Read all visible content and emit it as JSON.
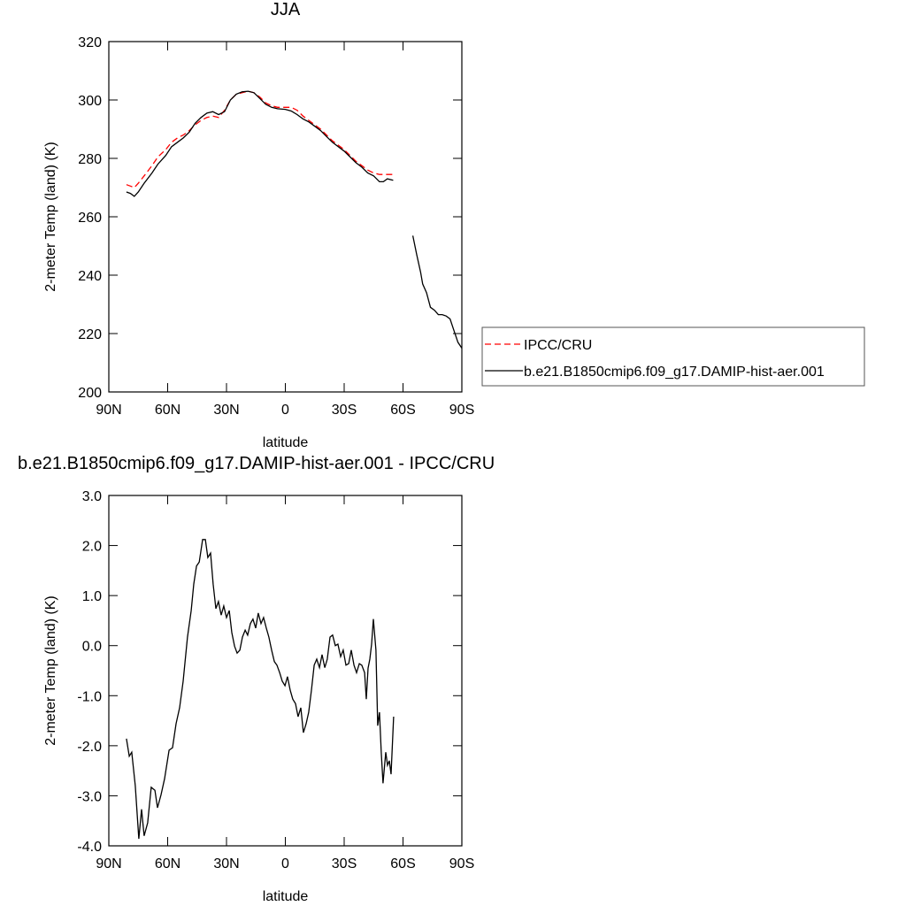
{
  "chart_data": [
    {
      "type": "line",
      "title": "JJA",
      "xlabel": "latitude",
      "ylabel": "2-meter Temp (land) (K)",
      "xlim": [
        90,
        -90
      ],
      "xticks": [
        {
          "value": 90,
          "label": "90N"
        },
        {
          "value": 60,
          "label": "60N"
        },
        {
          "value": 30,
          "label": "30N"
        },
        0,
        {
          "value": -30,
          "label": "30S"
        },
        {
          "value": -60,
          "label": "60S"
        },
        {
          "value": -90,
          "label": "90S"
        }
      ],
      "ylim": [
        200,
        320
      ],
      "yticks": [
        200,
        220,
        240,
        260,
        280,
        300,
        320
      ],
      "legend": "right",
      "x": [
        81,
        79,
        77,
        75,
        72,
        68,
        65,
        61,
        58,
        55,
        52,
        49,
        46,
        43,
        40,
        37,
        34,
        31,
        28,
        25,
        22,
        19,
        16,
        13,
        10,
        7,
        4,
        0,
        -3,
        -6,
        -9,
        -12,
        -15,
        -18,
        -21,
        -24,
        -27,
        -30,
        -33,
        -36,
        -39,
        -42,
        -45,
        -48,
        -50,
        -52,
        -55,
        -60,
        -65,
        -67,
        -69,
        -70,
        -72,
        -74,
        -76,
        -78,
        -80,
        -82,
        -84,
        -86,
        -88,
        -90
      ],
      "series": [
        {
          "name": "IPCC/CRU",
          "color": "#ff0000",
          "style": "dashed",
          "values": [
            271,
            270.5,
            270,
            271.5,
            274,
            277.5,
            280.5,
            283,
            285.5,
            287,
            288,
            289.5,
            291.5,
            293,
            294,
            294.5,
            294,
            296.5,
            300,
            302,
            302.5,
            303,
            302.5,
            301,
            299,
            298,
            297.5,
            297.5,
            297.5,
            296.5,
            294.5,
            293,
            291.5,
            290,
            288,
            286,
            284.5,
            283,
            281,
            279,
            277.5,
            276,
            275,
            274.5,
            274.5,
            274.5,
            274.5,
            null,
            null,
            null,
            null,
            null,
            null,
            null,
            null,
            null,
            null,
            null,
            null,
            null,
            null,
            null
          ]
        },
        {
          "name": "b.e21.B1850cmip6.f09_g17.DAMIP-hist-aer.001",
          "color": "#000000",
          "style": "solid",
          "values": [
            268.5,
            268,
            267,
            268.5,
            271.5,
            275,
            278,
            281,
            284,
            285.5,
            287,
            289,
            292,
            294,
            295.5,
            296,
            295,
            296,
            300,
            302,
            302.8,
            303,
            302.5,
            300.5,
            298.5,
            297.5,
            297,
            296.8,
            296.2,
            295,
            293.5,
            292.5,
            291,
            289.5,
            287.5,
            285.5,
            284,
            282.5,
            280.5,
            278.5,
            277,
            275,
            274,
            272,
            272,
            273,
            272.5,
            null,
            253.5,
            247,
            241,
            237,
            234,
            229,
            228,
            226.5,
            226.5,
            226,
            225,
            221,
            217,
            215
          ]
        }
      ]
    },
    {
      "type": "line",
      "title": "b.e21.B1850cmip6.f09_g17.DAMIP-hist-aer.001 - IPCC/CRU",
      "xlabel": "latitude",
      "ylabel": "2-meter Temp (land) (K)",
      "xlim": [
        90,
        -90
      ],
      "xticks": [
        {
          "value": 90,
          "label": "90N"
        },
        {
          "value": 60,
          "label": "60N"
        },
        {
          "value": 30,
          "label": "30N"
        },
        0,
        {
          "value": -30,
          "label": "30S"
        },
        {
          "value": -60,
          "label": "60S"
        },
        {
          "value": -90,
          "label": "90S"
        }
      ],
      "ylim": [
        -4,
        3
      ],
      "yticks": [
        {
          "value": -4,
          "label": "-4.0"
        },
        {
          "value": -3,
          "label": "-3.0"
        },
        {
          "value": -2,
          "label": "-2.0"
        },
        {
          "value": -1,
          "label": "-1.0"
        },
        {
          "value": 0,
          "label": "0.0"
        },
        {
          "value": 1,
          "label": "1.0"
        },
        {
          "value": 2,
          "label": "2.0"
        },
        {
          "value": 3,
          "label": "3.0"
        }
      ],
      "color": "#000000",
      "x": [
        81.0,
        79.6,
        78.3,
        76.5,
        74.7,
        73.3,
        72.0,
        70.2,
        68.4,
        66.5,
        65.2,
        63.4,
        61.6,
        59.3,
        57.5,
        55.7,
        53.9,
        52.1,
        49.9,
        48.0,
        46.7,
        45.3,
        43.9,
        42.2,
        40.8,
        39.5,
        38.1,
        36.8,
        35.4,
        34.1,
        32.7,
        31.4,
        30.0,
        28.6,
        27.3,
        25.9,
        24.6,
        23.2,
        21.9,
        20.5,
        19.2,
        17.8,
        16.5,
        15.1,
        13.8,
        12.4,
        11.1,
        9.7,
        8.4,
        7.0,
        5.6,
        4.3,
        2.9,
        1.6,
        0.2,
        -1.1,
        -2.5,
        -3.8,
        -5.2,
        -6.5,
        -7.9,
        -9.2,
        -10.6,
        -11.9,
        -13.3,
        -14.7,
        -16.0,
        -17.4,
        -18.7,
        -20.1,
        -21.4,
        -22.8,
        -24.1,
        -25.5,
        -26.8,
        -28.2,
        -29.5,
        -30.9,
        -32.3,
        -33.6,
        -35.0,
        -36.3,
        -37.7,
        -39.0,
        -40.4,
        -41.3,
        -42.2,
        -43.1,
        -44.0,
        -44.9,
        -46.2,
        -47.1,
        -48.0,
        -48.9,
        -49.8,
        -51.2,
        -52.1,
        -53.0,
        -53.9,
        -55.2
      ],
      "values": [
        -1.86,
        -2.21,
        -2.13,
        -2.8,
        -3.86,
        -3.27,
        -3.8,
        -3.54,
        -2.83,
        -2.89,
        -3.24,
        -2.98,
        -2.66,
        -2.09,
        -2.04,
        -1.56,
        -1.24,
        -0.71,
        0.17,
        0.7,
        1.23,
        1.59,
        1.67,
        2.12,
        2.12,
        1.76,
        1.85,
        1.23,
        0.74,
        0.88,
        0.61,
        0.79,
        0.56,
        0.7,
        0.26,
        -0.01,
        -0.15,
        -0.09,
        0.17,
        0.31,
        0.21,
        0.44,
        0.53,
        0.35,
        0.65,
        0.44,
        0.56,
        0.35,
        0.17,
        -0.09,
        -0.32,
        -0.39,
        -0.54,
        -0.71,
        -0.8,
        -0.62,
        -0.89,
        -1.07,
        -1.16,
        -1.42,
        -1.24,
        -1.74,
        -1.56,
        -1.33,
        -0.89,
        -0.39,
        -0.27,
        -0.44,
        -0.18,
        -0.44,
        -0.27,
        0.17,
        0.21,
        0.0,
        0.03,
        -0.22,
        -0.09,
        -0.39,
        -0.36,
        -0.09,
        -0.39,
        -0.54,
        -0.36,
        -0.39,
        -0.54,
        -1.07,
        -0.45,
        -0.27,
        0.03,
        0.53,
        -0.09,
        -1.6,
        -1.33,
        -2.13,
        -2.75,
        -2.13,
        -2.39,
        -2.3,
        -2.57,
        -1.42
      ]
    }
  ]
}
